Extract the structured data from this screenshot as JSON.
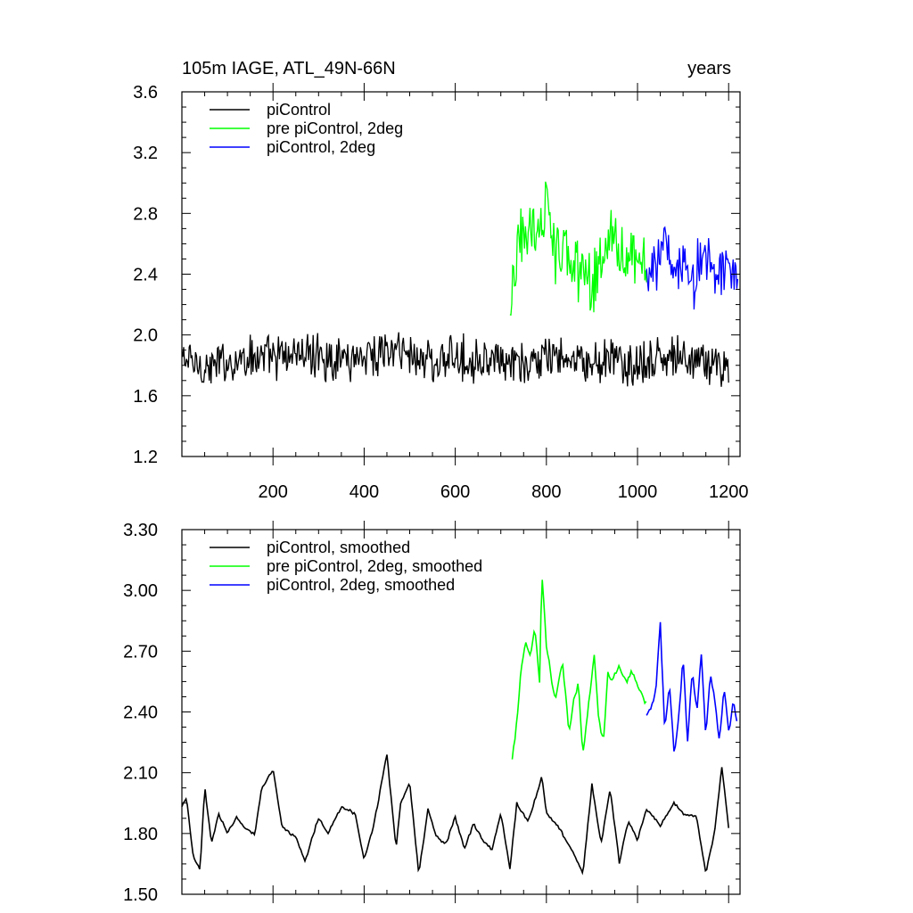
{
  "chart_data": [
    {
      "type": "line",
      "title_left": "105m IAGE, ATL_49N-66N",
      "title_right": "years",
      "xlabel": "",
      "ylabel": "",
      "xlim": [
        0,
        1225
      ],
      "ylim": [
        1.2,
        3.6
      ],
      "xticks": [
        200,
        400,
        600,
        800,
        1000,
        1200
      ],
      "xtick_labels": [
        "200",
        "400",
        "600",
        "800",
        "1000",
        "1200"
      ],
      "yticks": [
        1.2,
        1.6,
        2.0,
        2.4,
        2.8,
        3.2,
        3.6
      ],
      "ytick_labels": [
        "1.2",
        "1.6",
        "2.0",
        "2.4",
        "2.8",
        "3.2",
        "3.6"
      ],
      "legend_position": "top-left",
      "grid": false,
      "series": [
        {
          "name": "piControl",
          "color": "#000000",
          "x": [
            0,
            50,
            100,
            150,
            200,
            250,
            300,
            350,
            400,
            450,
            500,
            550,
            600,
            650,
            700,
            750,
            800,
            850,
            900,
            950,
            1000,
            1050,
            1100,
            1150,
            1200
          ],
          "values": [
            1.85,
            1.78,
            1.82,
            1.86,
            1.84,
            1.88,
            1.86,
            1.85,
            1.87,
            1.9,
            1.88,
            1.83,
            1.84,
            1.85,
            1.8,
            1.79,
            1.86,
            1.82,
            1.8,
            1.84,
            1.78,
            1.85,
            1.84,
            1.82,
            1.8
          ]
        },
        {
          "name": "pre piControl, 2deg",
          "color": "#00ff00",
          "x": [
            720,
            740,
            760,
            780,
            800,
            820,
            840,
            860,
            880,
            900,
            920,
            940,
            960,
            980,
            1000,
            1020
          ],
          "values": [
            2.1,
            2.6,
            2.75,
            2.65,
            2.85,
            2.55,
            2.55,
            2.4,
            2.45,
            2.35,
            2.45,
            2.6,
            2.55,
            2.6,
            2.5,
            2.45
          ]
        },
        {
          "name": "piControl, 2deg",
          "color": "#0000ff",
          "x": [
            1020,
            1040,
            1060,
            1080,
            1100,
            1120,
            1140,
            1160,
            1180,
            1200,
            1220
          ],
          "values": [
            2.4,
            2.45,
            2.6,
            2.35,
            2.5,
            2.3,
            2.55,
            2.45,
            2.4,
            2.5,
            2.35
          ]
        }
      ]
    },
    {
      "type": "line",
      "xlabel": "",
      "ylabel": "",
      "xlim": [
        0,
        1225
      ],
      "ylim": [
        1.5,
        3.3
      ],
      "xticks": [
        200,
        400,
        600,
        800,
        1000,
        1200
      ],
      "yticks": [
        1.5,
        1.8,
        2.1,
        2.4,
        2.7,
        3.0,
        3.3
      ],
      "ytick_labels": [
        "1.50",
        "1.80",
        "2.10",
        "2.40",
        "2.70",
        "3.00",
        "3.30"
      ],
      "legend_position": "top-left",
      "grid": false,
      "series": [
        {
          "name": "piControl, smoothed",
          "color": "#000000",
          "x": [
            0,
            10,
            25,
            40,
            50,
            65,
            80,
            100,
            120,
            140,
            160,
            175,
            200,
            220,
            250,
            270,
            300,
            320,
            350,
            380,
            400,
            420,
            450,
            470,
            480,
            500,
            520,
            540,
            560,
            580,
            600,
            620,
            640,
            660,
            680,
            700,
            720,
            735,
            760,
            790,
            800,
            830,
            860,
            880,
            900,
            920,
            940,
            960,
            980,
            1000,
            1020,
            1050,
            1080,
            1100,
            1130,
            1150,
            1170,
            1185,
            1200
          ],
          "values": [
            1.93,
            1.98,
            1.68,
            1.62,
            2.03,
            1.75,
            1.9,
            1.8,
            1.88,
            1.82,
            1.8,
            2.02,
            2.12,
            1.83,
            1.78,
            1.66,
            1.88,
            1.8,
            1.93,
            1.9,
            1.67,
            1.83,
            2.19,
            1.73,
            1.95,
            2.05,
            1.6,
            1.92,
            1.78,
            1.75,
            1.88,
            1.72,
            1.85,
            1.77,
            1.72,
            1.9,
            1.63,
            1.95,
            1.86,
            2.08,
            1.9,
            1.82,
            1.7,
            1.6,
            2.04,
            1.75,
            2.02,
            1.66,
            1.86,
            1.77,
            1.92,
            1.84,
            1.95,
            1.9,
            1.88,
            1.6,
            1.82,
            2.13,
            1.83
          ]
        },
        {
          "name": "pre piControl, 2deg, smoothed",
          "color": "#00ff00",
          "x": [
            725,
            735,
            745,
            755,
            765,
            775,
            785,
            790,
            800,
            810,
            820,
            835,
            850,
            860,
            870,
            880,
            895,
            905,
            915,
            925,
            935,
            945,
            960,
            975,
            990,
            1005,
            1020
          ],
          "values": [
            2.16,
            2.35,
            2.62,
            2.74,
            2.68,
            2.82,
            2.55,
            3.09,
            2.72,
            2.58,
            2.45,
            2.65,
            2.3,
            2.45,
            2.55,
            2.18,
            2.48,
            2.68,
            2.36,
            2.25,
            2.58,
            2.56,
            2.62,
            2.55,
            2.6,
            2.5,
            2.44
          ]
        },
        {
          "name": "piControl, 2deg, smoothed",
          "color": "#0000ff",
          "x": [
            1020,
            1030,
            1040,
            1050,
            1060,
            1070,
            1080,
            1090,
            1100,
            1110,
            1120,
            1130,
            1140,
            1150,
            1160,
            1170,
            1180,
            1190,
            1200,
            1210,
            1220
          ],
          "values": [
            2.38,
            2.42,
            2.5,
            2.84,
            2.3,
            2.55,
            2.2,
            2.35,
            2.68,
            2.25,
            2.6,
            2.4,
            2.68,
            2.28,
            2.6,
            2.45,
            2.25,
            2.52,
            2.3,
            2.45,
            2.33
          ]
        }
      ]
    }
  ]
}
